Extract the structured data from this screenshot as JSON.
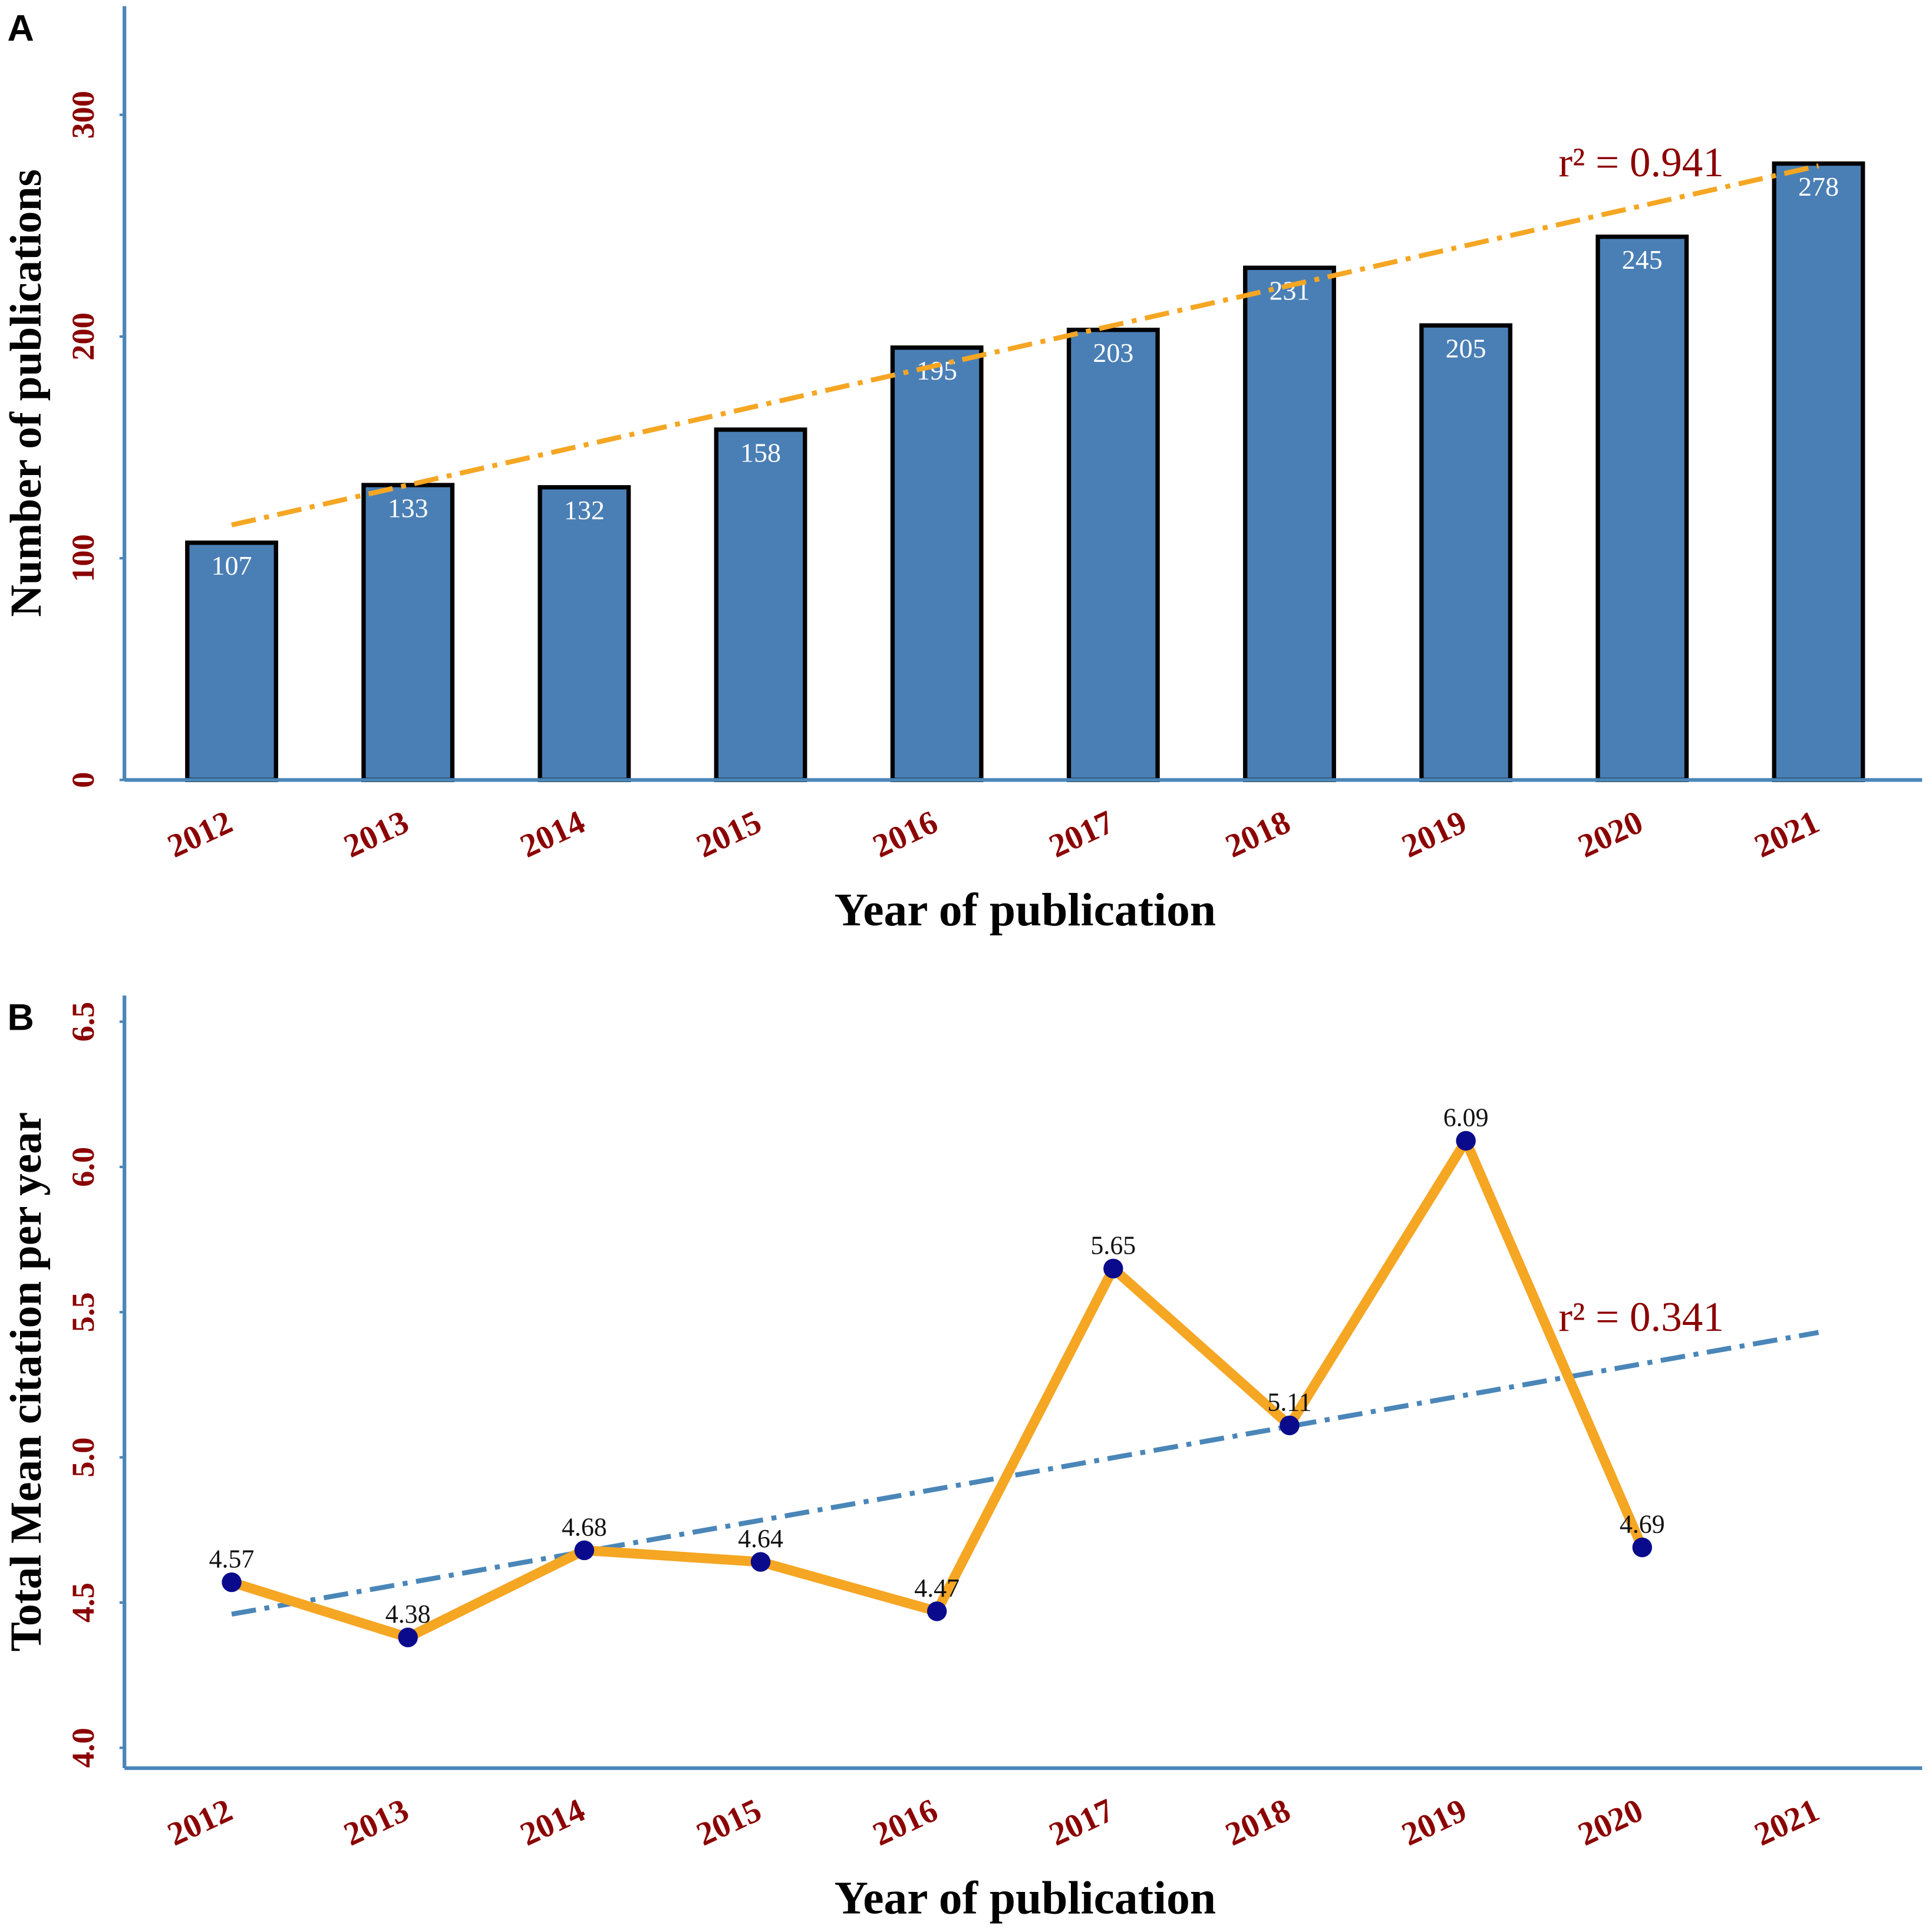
{
  "chart_data": [
    {
      "type": "bar",
      "panel": "A",
      "xlabel": "Year of publication",
      "ylabel": "Number of publications",
      "categories": [
        "2012",
        "2013",
        "2014",
        "2015",
        "2016",
        "2017",
        "2018",
        "2019",
        "2020",
        "2021"
      ],
      "values": [
        107,
        133,
        132,
        158,
        195,
        203,
        231,
        205,
        245,
        278
      ],
      "color": "#4a7fb5",
      "ylim": [
        0,
        349
      ],
      "yticks": [
        0,
        100,
        200,
        300
      ],
      "trend": [
        115,
        277
      ],
      "trend_color": "#f5a623",
      "annotation": "r² = 0.941"
    },
    {
      "type": "line",
      "panel": "B",
      "xlabel": "Year of publication",
      "ylabel": "Total Mean citation per year",
      "categories": [
        "2012",
        "2013",
        "2014",
        "2015",
        "2016",
        "2017",
        "2018",
        "2019",
        "2020",
        "2021"
      ],
      "values": [
        4.57,
        4.38,
        4.68,
        4.64,
        4.47,
        5.65,
        5.11,
        6.09,
        4.69,
        null
      ],
      "color": "#f5a623",
      "marker_color": "#0a0a8c",
      "ylim": [
        3.93,
        6.59
      ],
      "yticks": [
        {
          "value": 4,
          "label": "4.0"
        },
        4.5,
        {
          "value": 5,
          "label": "5.0"
        },
        5.5,
        {
          "value": 6,
          "label": "6.0"
        },
        6.5
      ],
      "trend": [
        4.46,
        5.43
      ],
      "trend_color": "#4a86b8",
      "annotation": "r² = 0.341"
    }
  ]
}
